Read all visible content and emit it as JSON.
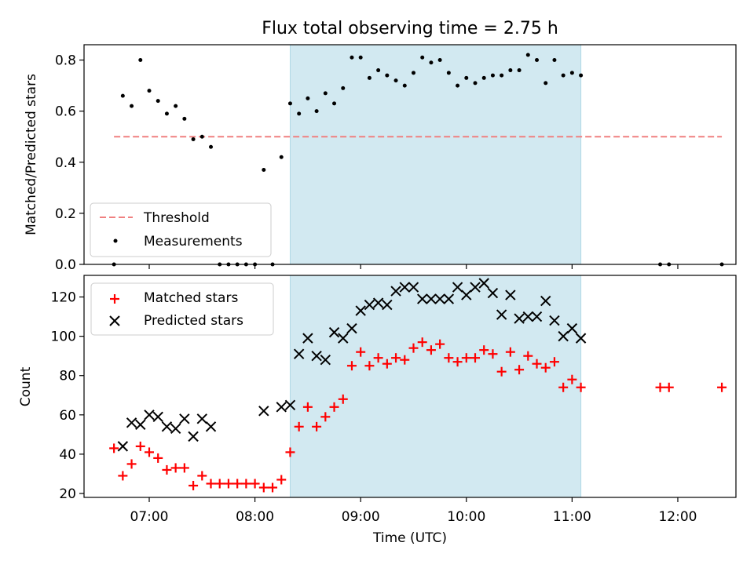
{
  "title": "Flux total observing time = 2.75 h",
  "xlabel": "Time (UTC)",
  "x_ticks": [
    "07:00",
    "08:00",
    "09:00",
    "10:00",
    "11:00",
    "12:00"
  ],
  "shaded_window": {
    "start": "08:20",
    "end": "11:05",
    "color": "#d2e9f1"
  },
  "chart_data": [
    {
      "type": "scatter",
      "panel": "top",
      "ylabel": "Matched/Predicted stars",
      "ylim": [
        0,
        0.86
      ],
      "y_ticks": [
        0.0,
        0.2,
        0.4,
        0.6,
        0.8
      ],
      "legend": {
        "placement": "lower-left",
        "entries": [
          "Threshold",
          "Measurements"
        ]
      },
      "threshold": {
        "name": "Threshold",
        "value": 0.5,
        "x_range": [
          "06:40",
          "12:25"
        ],
        "color": "#f08080",
        "style": "dashed"
      },
      "series": [
        {
          "name": "Measurements",
          "color": "#000000",
          "marker": "dot",
          "points": [
            [
              "06:40",
              0.0
            ],
            [
              "06:45",
              0.66
            ],
            [
              "06:50",
              0.62
            ],
            [
              "06:55",
              0.8
            ],
            [
              "07:00",
              0.68
            ],
            [
              "07:05",
              0.64
            ],
            [
              "07:10",
              0.59
            ],
            [
              "07:15",
              0.62
            ],
            [
              "07:20",
              0.57
            ],
            [
              "07:25",
              0.49
            ],
            [
              "07:30",
              0.5
            ],
            [
              "07:35",
              0.46
            ],
            [
              "07:40",
              0.0
            ],
            [
              "07:45",
              0.0
            ],
            [
              "07:50",
              0.0
            ],
            [
              "07:55",
              0.0
            ],
            [
              "08:00",
              0.0
            ],
            [
              "08:05",
              0.37
            ],
            [
              "08:10",
              0.0
            ],
            [
              "08:15",
              0.42
            ],
            [
              "08:20",
              0.63
            ],
            [
              "08:25",
              0.59
            ],
            [
              "08:30",
              0.65
            ],
            [
              "08:35",
              0.6
            ],
            [
              "08:40",
              0.67
            ],
            [
              "08:45",
              0.63
            ],
            [
              "08:50",
              0.69
            ],
            [
              "08:55",
              0.81
            ],
            [
              "09:00",
              0.81
            ],
            [
              "09:05",
              0.73
            ],
            [
              "09:10",
              0.76
            ],
            [
              "09:15",
              0.74
            ],
            [
              "09:20",
              0.72
            ],
            [
              "09:25",
              0.7
            ],
            [
              "09:30",
              0.75
            ],
            [
              "09:35",
              0.81
            ],
            [
              "09:40",
              0.79
            ],
            [
              "09:45",
              0.8
            ],
            [
              "09:50",
              0.75
            ],
            [
              "09:55",
              0.7
            ],
            [
              "10:00",
              0.73
            ],
            [
              "10:05",
              0.71
            ],
            [
              "10:10",
              0.73
            ],
            [
              "10:15",
              0.74
            ],
            [
              "10:20",
              0.74
            ],
            [
              "10:25",
              0.76
            ],
            [
              "10:30",
              0.76
            ],
            [
              "10:35",
              0.82
            ],
            [
              "10:40",
              0.8
            ],
            [
              "10:45",
              0.71
            ],
            [
              "10:50",
              0.8
            ],
            [
              "10:55",
              0.74
            ],
            [
              "11:00",
              0.75
            ],
            [
              "11:05",
              0.74
            ],
            [
              "11:50",
              0.0
            ],
            [
              "11:55",
              0.0
            ],
            [
              "12:25",
              0.0
            ]
          ]
        }
      ]
    },
    {
      "type": "scatter",
      "panel": "bottom",
      "ylabel": "Count",
      "ylim": [
        18,
        131
      ],
      "y_ticks": [
        20,
        40,
        60,
        80,
        100,
        120
      ],
      "legend": {
        "placement": "upper-left",
        "entries": [
          "Matched stars",
          "Predicted stars"
        ]
      },
      "series": [
        {
          "name": "Matched stars",
          "color": "#ff0000",
          "marker": "plus",
          "points": [
            [
              "06:40",
              43
            ],
            [
              "06:45",
              29
            ],
            [
              "06:50",
              35
            ],
            [
              "06:55",
              44
            ],
            [
              "07:00",
              41
            ],
            [
              "07:05",
              38
            ],
            [
              "07:10",
              32
            ],
            [
              "07:15",
              33
            ],
            [
              "07:20",
              33
            ],
            [
              "07:25",
              24
            ],
            [
              "07:30",
              29
            ],
            [
              "07:35",
              25
            ],
            [
              "07:40",
              25
            ],
            [
              "07:45",
              25
            ],
            [
              "07:50",
              25
            ],
            [
              "07:55",
              25
            ],
            [
              "08:00",
              25
            ],
            [
              "08:05",
              23
            ],
            [
              "08:10",
              23
            ],
            [
              "08:15",
              27
            ],
            [
              "08:20",
              41
            ],
            [
              "08:25",
              54
            ],
            [
              "08:30",
              64
            ],
            [
              "08:35",
              54
            ],
            [
              "08:40",
              59
            ],
            [
              "08:45",
              64
            ],
            [
              "08:50",
              68
            ],
            [
              "08:55",
              85
            ],
            [
              "09:00",
              92
            ],
            [
              "09:05",
              85
            ],
            [
              "09:10",
              89
            ],
            [
              "09:15",
              86
            ],
            [
              "09:20",
              89
            ],
            [
              "09:25",
              88
            ],
            [
              "09:30",
              94
            ],
            [
              "09:35",
              97
            ],
            [
              "09:40",
              93
            ],
            [
              "09:45",
              96
            ],
            [
              "09:50",
              89
            ],
            [
              "09:55",
              87
            ],
            [
              "10:00",
              89
            ],
            [
              "10:05",
              89
            ],
            [
              "10:10",
              93
            ],
            [
              "10:15",
              91
            ],
            [
              "10:20",
              82
            ],
            [
              "10:25",
              92
            ],
            [
              "10:30",
              83
            ],
            [
              "10:35",
              90
            ],
            [
              "10:40",
              86
            ],
            [
              "10:45",
              84
            ],
            [
              "10:50",
              87
            ],
            [
              "10:55",
              74
            ],
            [
              "11:00",
              78
            ],
            [
              "11:05",
              74
            ],
            [
              "11:50",
              74
            ],
            [
              "11:55",
              74
            ],
            [
              "12:25",
              74
            ]
          ]
        },
        {
          "name": "Predicted stars",
          "color": "#000000",
          "marker": "x",
          "points": [
            [
              "06:45",
              44
            ],
            [
              "06:50",
              56
            ],
            [
              "06:55",
              55
            ],
            [
              "07:00",
              60
            ],
            [
              "07:05",
              59
            ],
            [
              "07:10",
              54
            ],
            [
              "07:15",
              53
            ],
            [
              "07:20",
              58
            ],
            [
              "07:25",
              49
            ],
            [
              "07:30",
              58
            ],
            [
              "07:35",
              54
            ],
            [
              "08:05",
              62
            ],
            [
              "08:15",
              64
            ],
            [
              "08:20",
              65
            ],
            [
              "08:25",
              91
            ],
            [
              "08:30",
              99
            ],
            [
              "08:35",
              90
            ],
            [
              "08:40",
              88
            ],
            [
              "08:45",
              102
            ],
            [
              "08:50",
              99
            ],
            [
              "08:55",
              104
            ],
            [
              "09:00",
              113
            ],
            [
              "09:05",
              116
            ],
            [
              "09:10",
              117
            ],
            [
              "09:15",
              116
            ],
            [
              "09:20",
              123
            ],
            [
              "09:25",
              125
            ],
            [
              "09:30",
              125
            ],
            [
              "09:35",
              119
            ],
            [
              "09:40",
              119
            ],
            [
              "09:45",
              119
            ],
            [
              "09:50",
              119
            ],
            [
              "09:55",
              125
            ],
            [
              "10:00",
              121
            ],
            [
              "10:05",
              125
            ],
            [
              "10:10",
              127
            ],
            [
              "10:15",
              122
            ],
            [
              "10:20",
              111
            ],
            [
              "10:25",
              121
            ],
            [
              "10:30",
              109
            ],
            [
              "10:35",
              110
            ],
            [
              "10:40",
              110
            ],
            [
              "10:45",
              118
            ],
            [
              "10:50",
              108
            ],
            [
              "10:55",
              100
            ],
            [
              "11:00",
              104
            ],
            [
              "11:05",
              99
            ]
          ]
        }
      ]
    }
  ]
}
